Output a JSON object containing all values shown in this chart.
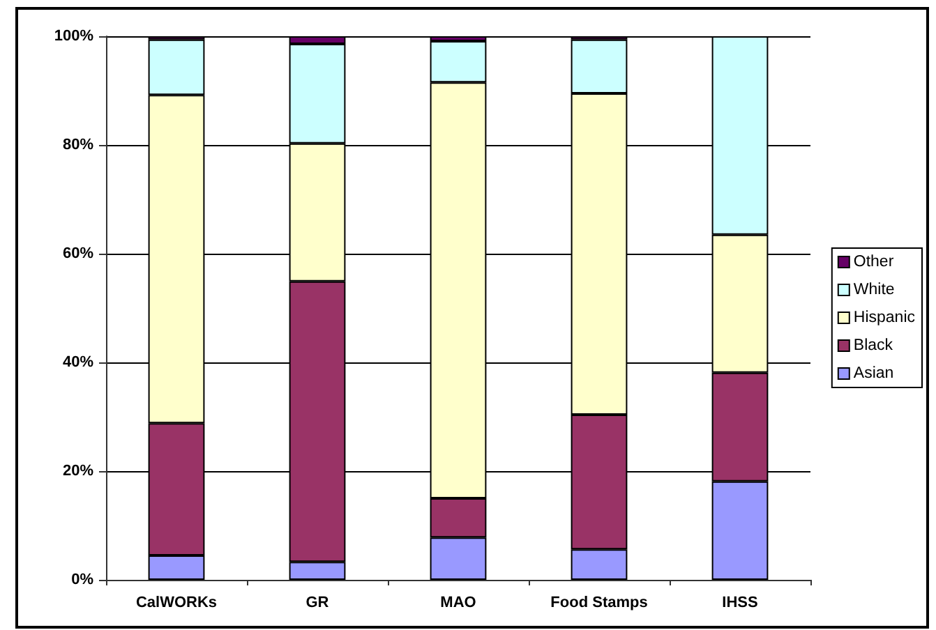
{
  "chart_data": {
    "type": "bar",
    "stacked": true,
    "categories": [
      "CalWORKs",
      "GR",
      "MAO",
      "Food Stamps",
      "IHSS"
    ],
    "series": [
      {
        "name": "Asian",
        "color": "#9999ff",
        "values": [
          4.5,
          3.3,
          7.8,
          5.6,
          18.1
        ]
      },
      {
        "name": "Black",
        "color": "#993366",
        "values": [
          24.3,
          51.6,
          7.2,
          24.8,
          20.0
        ]
      },
      {
        "name": "Hispanic",
        "color": "#ffffcc",
        "values": [
          60.4,
          25.4,
          76.5,
          59.1,
          25.4
        ]
      },
      {
        "name": "White",
        "color": "#ccffff",
        "values": [
          10.2,
          18.3,
          7.6,
          9.9,
          36.5
        ]
      },
      {
        "name": "Other",
        "color": "#660066",
        "values": [
          0.6,
          1.4,
          0.9,
          0.6,
          null
        ]
      }
    ],
    "ylim": [
      0,
      100
    ],
    "yticks": [
      {
        "value": 0,
        "label": "0%"
      },
      {
        "value": 20,
        "label": "20%"
      },
      {
        "value": 40,
        "label": "40%"
      },
      {
        "value": 60,
        "label": "60%"
      },
      {
        "value": 80,
        "label": "80%"
      },
      {
        "value": 100,
        "label": "100%"
      }
    ],
    "grid": "y",
    "legend": "right"
  }
}
